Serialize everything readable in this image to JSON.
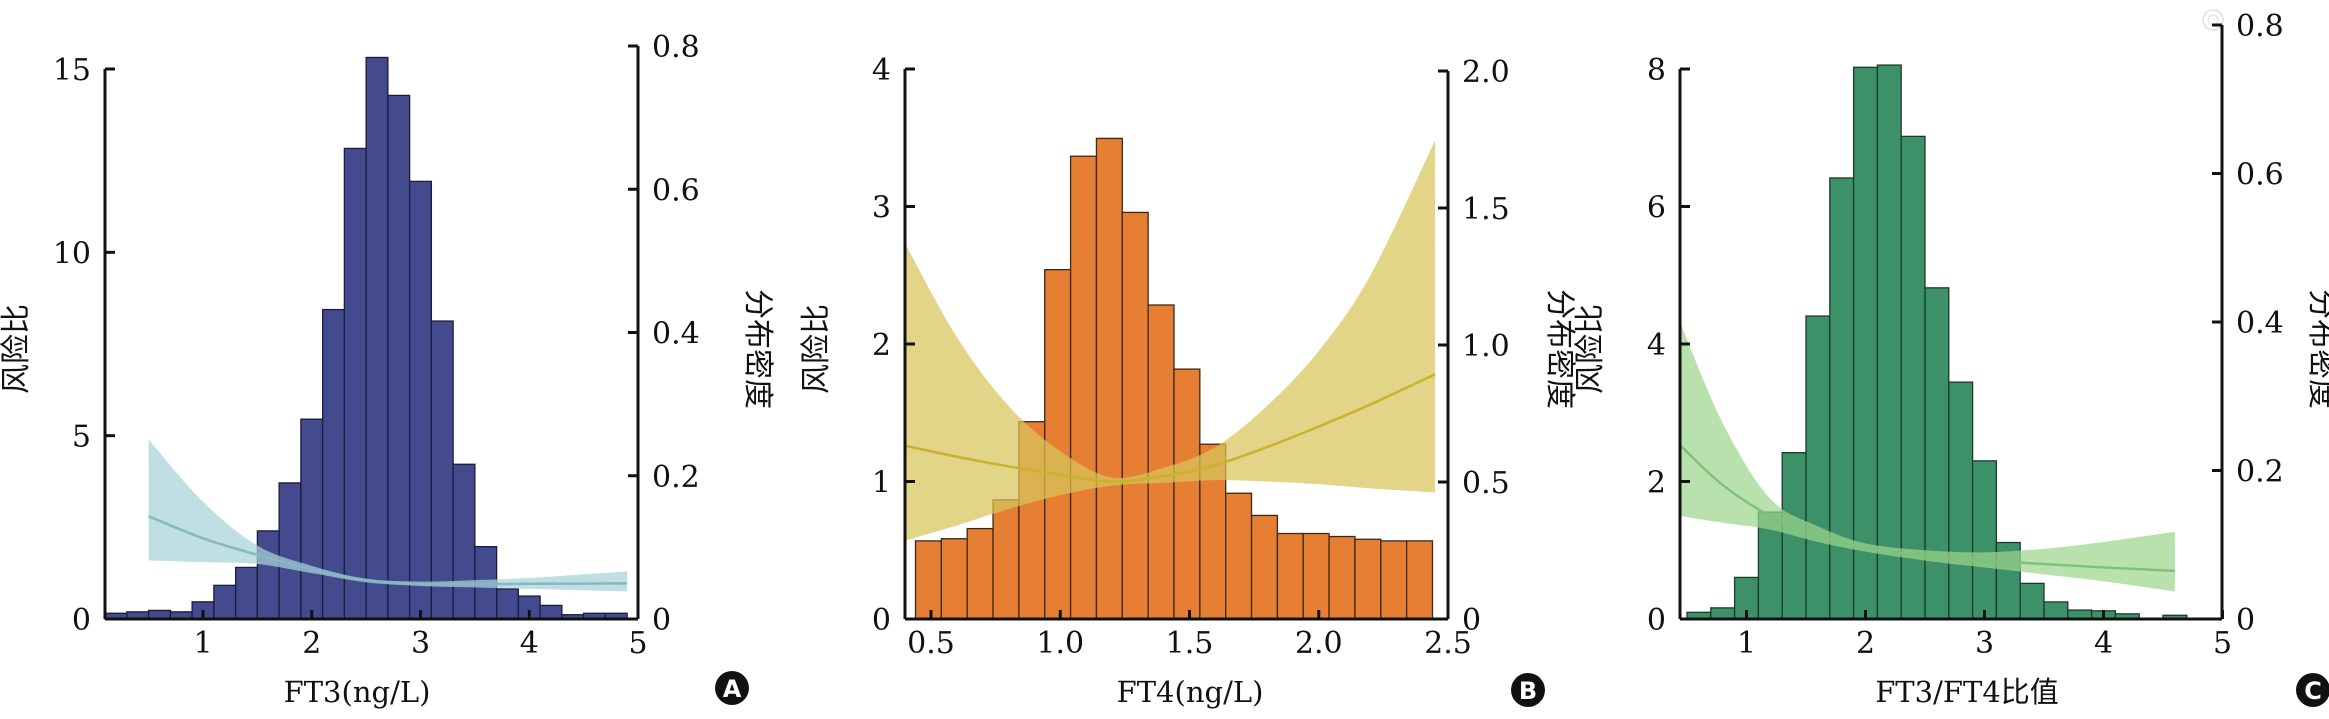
{
  "chart_data": [
    {
      "panel_label": "A",
      "type": "bar+line",
      "xlabel": "FT3(ng/L)",
      "ylabel_left": "风险比",
      "ylabel_right": "分布密度",
      "xlim": [
        0.1,
        5
      ],
      "ylim_left": [
        0,
        15
      ],
      "ylim_right": [
        0,
        0.8
      ],
      "xticks": [
        "1",
        "2",
        "3",
        "4",
        "5"
      ],
      "xtick_values": [
        1,
        2,
        3,
        4,
        5
      ],
      "yticks_left": [
        "0",
        "5",
        "10",
        "15"
      ],
      "ytick_left_values": [
        0,
        5,
        10,
        15
      ],
      "yticks_right": [
        "0",
        "0.2",
        "0.4",
        "0.6",
        "0.8"
      ],
      "ytick_right_values": [
        0,
        0.2,
        0.4,
        0.6,
        0.8
      ],
      "colors": {
        "bar": "#434a8e",
        "bar_edge": "#1c1c3c",
        "band": "#a6d2da",
        "line": "#86b7c2"
      },
      "histogram": {
        "bin_start": 0.1,
        "bin_width": 0.2,
        "density": [
          0.008,
          0.01,
          0.012,
          0.01,
          0.024,
          0.047,
          0.072,
          0.123,
          0.19,
          0.279,
          0.432,
          0.657,
          0.784,
          0.731,
          0.611,
          0.416,
          0.216,
          0.101,
          0.042,
          0.032,
          0.019,
          0.006,
          0.008,
          0.008
        ]
      },
      "hazard_ratio": {
        "x": [
          0.5,
          1,
          1.5,
          2,
          2.5,
          3,
          3.5,
          4,
          4.9
        ],
        "hr": [
          2.8,
          2.2,
          1.75,
          1.35,
          1.06,
          0.96,
          0.95,
          0.96,
          0.97
        ],
        "lo": [
          1.6,
          1.55,
          1.5,
          1.25,
          1.0,
          0.9,
          0.86,
          0.82,
          0.75
        ],
        "hi": [
          4.9,
          3.2,
          2.0,
          1.45,
          1.1,
          1.02,
          1.06,
          1.12,
          1.3
        ]
      }
    },
    {
      "panel_label": "B",
      "type": "bar+line",
      "xlabel": "FT4(ng/L)",
      "ylabel_left": "风险比",
      "ylabel_right": "分布密度",
      "xlim": [
        0.4,
        2.5
      ],
      "ylim_left": [
        0,
        4
      ],
      "ylim_right": [
        0,
        2.0
      ],
      "xticks": [
        "0.5",
        "1.0",
        "1.5",
        "2.0",
        "2.5"
      ],
      "xtick_values": [
        0.5,
        1.0,
        1.5,
        2.0,
        2.5
      ],
      "yticks_left": [
        "0",
        "1",
        "2",
        "3",
        "4"
      ],
      "ytick_left_values": [
        0,
        1,
        2,
        3,
        4
      ],
      "yticks_right": [
        "0",
        "0.5",
        "1.0",
        "1.5",
        "2.0"
      ],
      "ytick_right_values": [
        0,
        0.5,
        1.0,
        1.5,
        2.0
      ],
      "colors": {
        "bar": "#e67e33",
        "bar_edge": "#3a2a1a",
        "band": "#d8c55a",
        "line": "#c9b22c"
      },
      "histogram": {
        "bin_start": 0.44,
        "bin_width": 0.1,
        "density": [
          0.285,
          0.293,
          0.33,
          0.435,
          0.72,
          1.275,
          1.689,
          1.754,
          1.484,
          1.146,
          0.912,
          0.638,
          0.459,
          0.378,
          0.312,
          0.312,
          0.301,
          0.291,
          0.285,
          0.285
        ]
      },
      "hazard_ratio": {
        "x": [
          0.4,
          0.6,
          0.8,
          1.0,
          1.2,
          1.4,
          1.6,
          1.8,
          2.0,
          2.2,
          2.45
        ],
        "hr": [
          1.26,
          1.18,
          1.11,
          1.05,
          1.0,
          1.04,
          1.12,
          1.25,
          1.4,
          1.56,
          1.78
        ],
        "lo": [
          0.57,
          0.68,
          0.8,
          0.9,
          0.97,
          0.99,
          1.01,
          1.0,
          0.98,
          0.95,
          0.92
        ],
        "hi": [
          2.73,
          2.05,
          1.55,
          1.22,
          1.03,
          1.1,
          1.25,
          1.55,
          1.95,
          2.5,
          3.48
        ]
      }
    },
    {
      "panel_label": "C",
      "type": "bar+line",
      "xlabel": "FT3/FT4比值",
      "ylabel_left": "风险比",
      "ylabel_right": "分布密度",
      "xlim": [
        0.44,
        5
      ],
      "ylim_left": [
        0,
        8
      ],
      "ylim_right": [
        0,
        0.8
      ],
      "xticks": [
        "1",
        "2",
        "3",
        "4",
        "5"
      ],
      "xtick_values": [
        1,
        2,
        3,
        4,
        5
      ],
      "yticks_left": [
        "0",
        "2",
        "4",
        "6",
        "8"
      ],
      "ytick_left_values": [
        0,
        2,
        4,
        6,
        8
      ],
      "yticks_right": [
        "0",
        "0.2",
        "0.4",
        "0.6",
        "0.8"
      ],
      "ytick_right_values": [
        0,
        0.2,
        0.4,
        0.6,
        0.8
      ],
      "colors": {
        "bar": "#3c9168",
        "bar_edge": "#1c3a2a",
        "band": "#9dd58e",
        "line": "#7cc27a"
      },
      "histogram": {
        "bin_start": 0.5,
        "bin_width": 0.2,
        "density": [
          0.009,
          0.015,
          0.056,
          0.144,
          0.224,
          0.408,
          0.594,
          0.743,
          0.746,
          0.65,
          0.446,
          0.319,
          0.213,
          0.103,
          0.048,
          0.023,
          0.012,
          0.011,
          0.007,
          0.001,
          0.005
        ]
      },
      "hazard_ratio": {
        "x": [
          0.44,
          0.8,
          1.2,
          1.6,
          2.0,
          2.5,
          3.0,
          3.5,
          4.0,
          4.6
        ],
        "hr": [
          2.53,
          1.95,
          1.5,
          1.22,
          1.03,
          0.92,
          0.85,
          0.8,
          0.75,
          0.7
        ],
        "lo": [
          1.5,
          1.4,
          1.3,
          1.12,
          0.98,
          0.85,
          0.75,
          0.65,
          0.55,
          0.4
        ],
        "hi": [
          4.33,
          2.85,
          1.75,
          1.35,
          1.1,
          1.0,
          0.97,
          1.02,
          1.12,
          1.27
        ]
      }
    }
  ]
}
